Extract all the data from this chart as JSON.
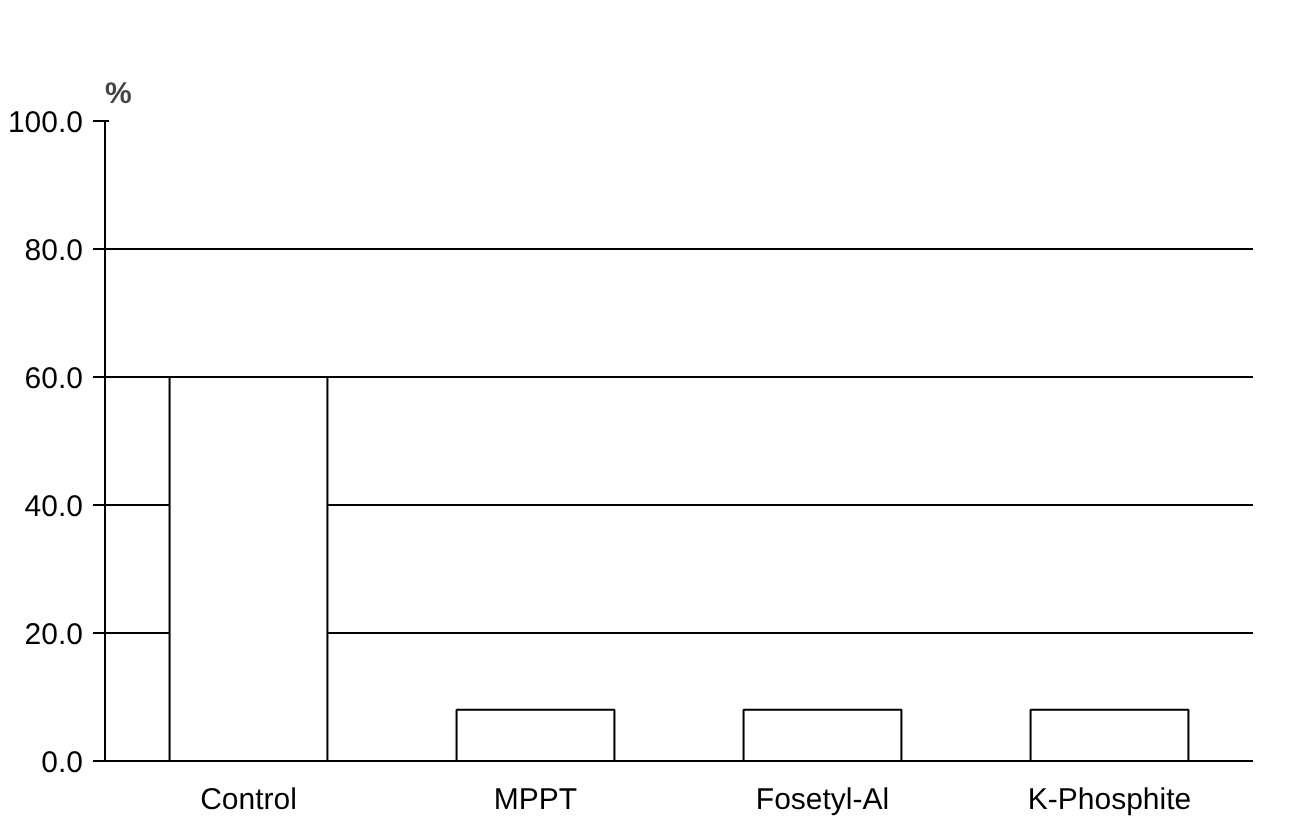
{
  "chart_data": {
    "type": "bar",
    "ylabel": "%",
    "categories": [
      "Control",
      "MPPT",
      "Fosetyl-Al",
      "K-Phosphite"
    ],
    "values": [
      60,
      8,
      8,
      8
    ],
    "color": "#ffffff",
    "ylim": [
      0,
      100
    ],
    "yticks": [
      {
        "value": 0,
        "label": "0.0"
      },
      {
        "value": 20,
        "label": "20.0"
      },
      {
        "value": 40,
        "label": "40.0"
      },
      {
        "value": 60,
        "label": "60.0"
      },
      {
        "value": 80,
        "label": "80.0"
      },
      {
        "value": 100,
        "label": "100.0"
      }
    ],
    "grid": "y"
  }
}
